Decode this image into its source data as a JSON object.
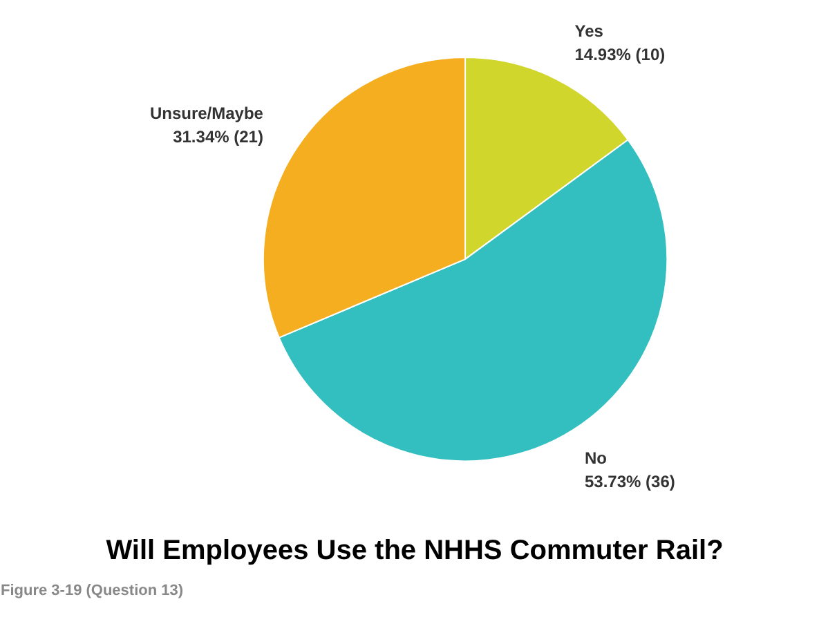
{
  "chart_data": {
    "type": "pie",
    "title": "Will Employees Use the NHHS Commuter Rail?",
    "categories": [
      "Yes",
      "No",
      "Unsure/Maybe"
    ],
    "values": [
      10,
      36,
      21
    ],
    "value_labels": [
      "14.93% (10)",
      "53.73% (36)",
      "31.34% (21)"
    ],
    "colors": [
      "#d0d62c",
      "#33bfc0",
      "#f5ae1f"
    ],
    "annotations": [
      "Figure 3-19 (Question 13)"
    ]
  }
}
